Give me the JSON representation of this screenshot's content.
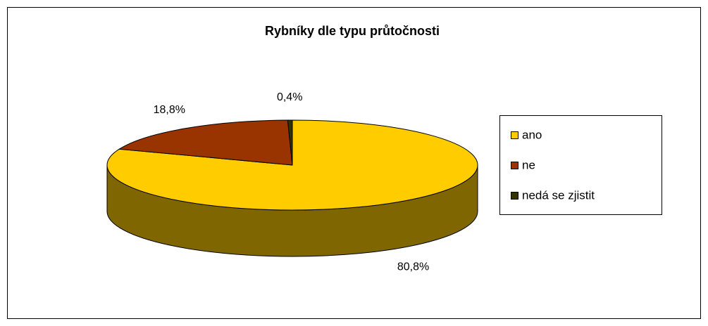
{
  "chart_data": {
    "type": "pie",
    "title": "Rybníky dle typu průtočnosti",
    "categories": [
      "ano",
      "ne",
      "nedá se zjistit"
    ],
    "values": [
      80.8,
      18.8,
      0.4
    ],
    "value_labels": [
      "80,8%",
      "18,8%",
      "0,4%"
    ],
    "colors": [
      "#ffcc00",
      "#993300",
      "#333300"
    ],
    "legend": "right"
  }
}
